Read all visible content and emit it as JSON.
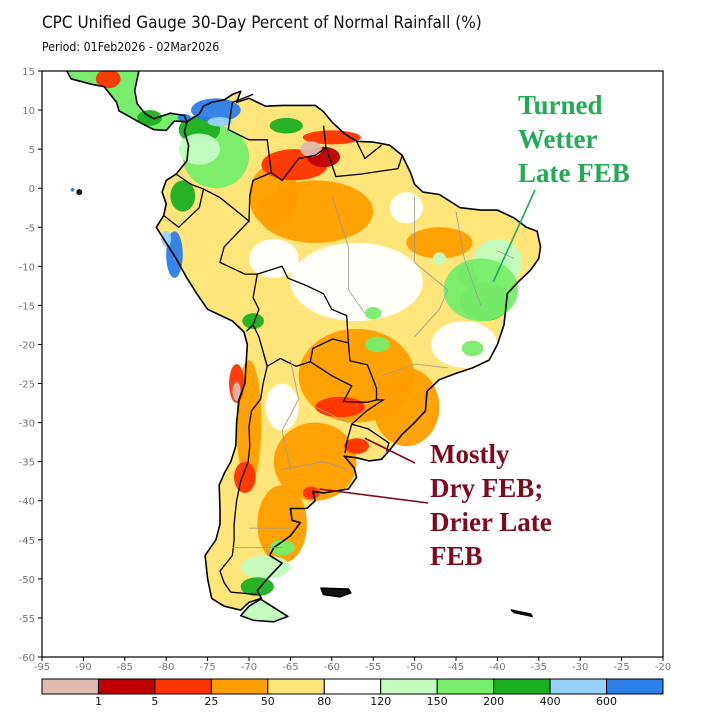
{
  "header": {
    "title": "CPC Unified Gauge 30-Day Percent of Normal Rainfall (%)",
    "period": "Period: 01Feb2026 - 02Mar2026"
  },
  "map": {
    "region": "South America",
    "lon_range": [
      -95,
      -20
    ],
    "lat_range": [
      -60,
      15
    ],
    "x_ticks": [
      -95,
      -90,
      -85,
      -80,
      -75,
      -70,
      -65,
      -60,
      -55,
      -50,
      -45,
      -40,
      -35,
      -30,
      -25,
      -20
    ],
    "y_ticks": [
      15,
      10,
      5,
      0,
      -5,
      -10,
      -15,
      -20,
      -25,
      -30,
      -35,
      -40,
      -45,
      -50,
      -55,
      -60
    ],
    "anomaly_regions": [
      {
        "name": "northern-brazil-venezuela-dry",
        "category": "1-5",
        "lon": -60.5,
        "lat": 3.5
      },
      {
        "name": "colombia-caribbean-wet",
        "category": "400-600+",
        "lon": -73,
        "lat": 10
      },
      {
        "name": "peru-coast-wet",
        "category": "400-600+",
        "lon": -79,
        "lat": -9
      },
      {
        "name": "northeast-brazil-wet",
        "category": "200-400",
        "lon": -41,
        "lat": -13
      },
      {
        "name": "argentina-pampas-dry",
        "category": "25-50",
        "lon": -61,
        "lat": -33
      },
      {
        "name": "paraguay-dry",
        "category": "5-25",
        "lon": -58,
        "lat": -27
      },
      {
        "name": "patagonia-wet",
        "category": "150-400",
        "lon": -68,
        "lat": -50
      }
    ]
  },
  "annotations": {
    "wetter": {
      "text": "Turned\nWetter\nLate FEB",
      "color": "#22aa55",
      "pointer_to": {
        "lon": -40.5,
        "lat": -12
      }
    },
    "dry": {
      "text": "Mostly\nDry FEB;\nDrier Late\nFEB",
      "color": "#7f0a1e",
      "pointers_to": [
        {
          "lon": -56,
          "lat": -32
        },
        {
          "lon": -61.5,
          "lat": -38.5
        }
      ]
    }
  },
  "colorbar": {
    "colors": [
      "#ddbbb0",
      "#c00000",
      "#ff3300",
      "#ff9e00",
      "#ffe57a",
      "#ffffff",
      "#c4fdc0",
      "#78ed6c",
      "#1ab022",
      "#96d2fa",
      "#2c7ee8"
    ],
    "labels": [
      "1",
      "5",
      "25",
      "50",
      "80",
      "120",
      "150",
      "200",
      "400",
      "600"
    ]
  }
}
